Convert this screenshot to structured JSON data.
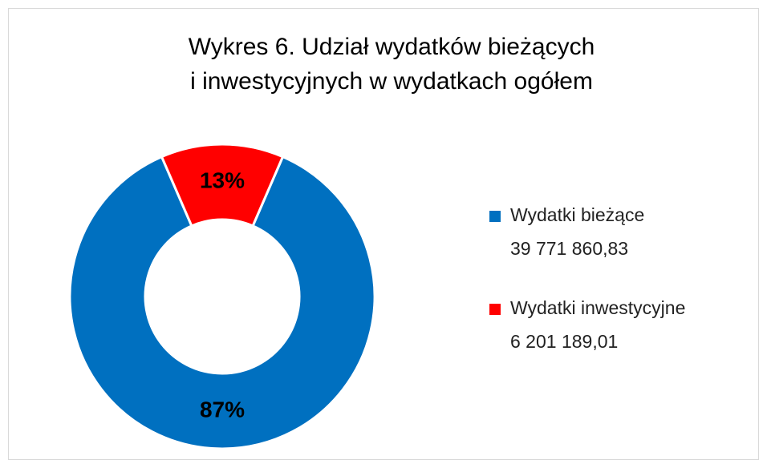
{
  "chart_data": {
    "type": "donut",
    "title": [
      "Wykres 6. Udział wydatków bieżących",
      "i inwestycyjnych w wydatkach ogółem"
    ],
    "categories": [
      "Wydatki bieżące",
      "Wydatki inwestycyjne"
    ],
    "values": [
      87,
      13
    ],
    "value_labels": [
      "87%",
      "13%"
    ],
    "amounts": [
      39771860.83,
      6201189.01
    ],
    "amount_labels": [
      "39 771 860,83",
      "6 201 189,01"
    ],
    "colors": [
      "#0070c0",
      "#ff0000"
    ],
    "legend": "right"
  }
}
